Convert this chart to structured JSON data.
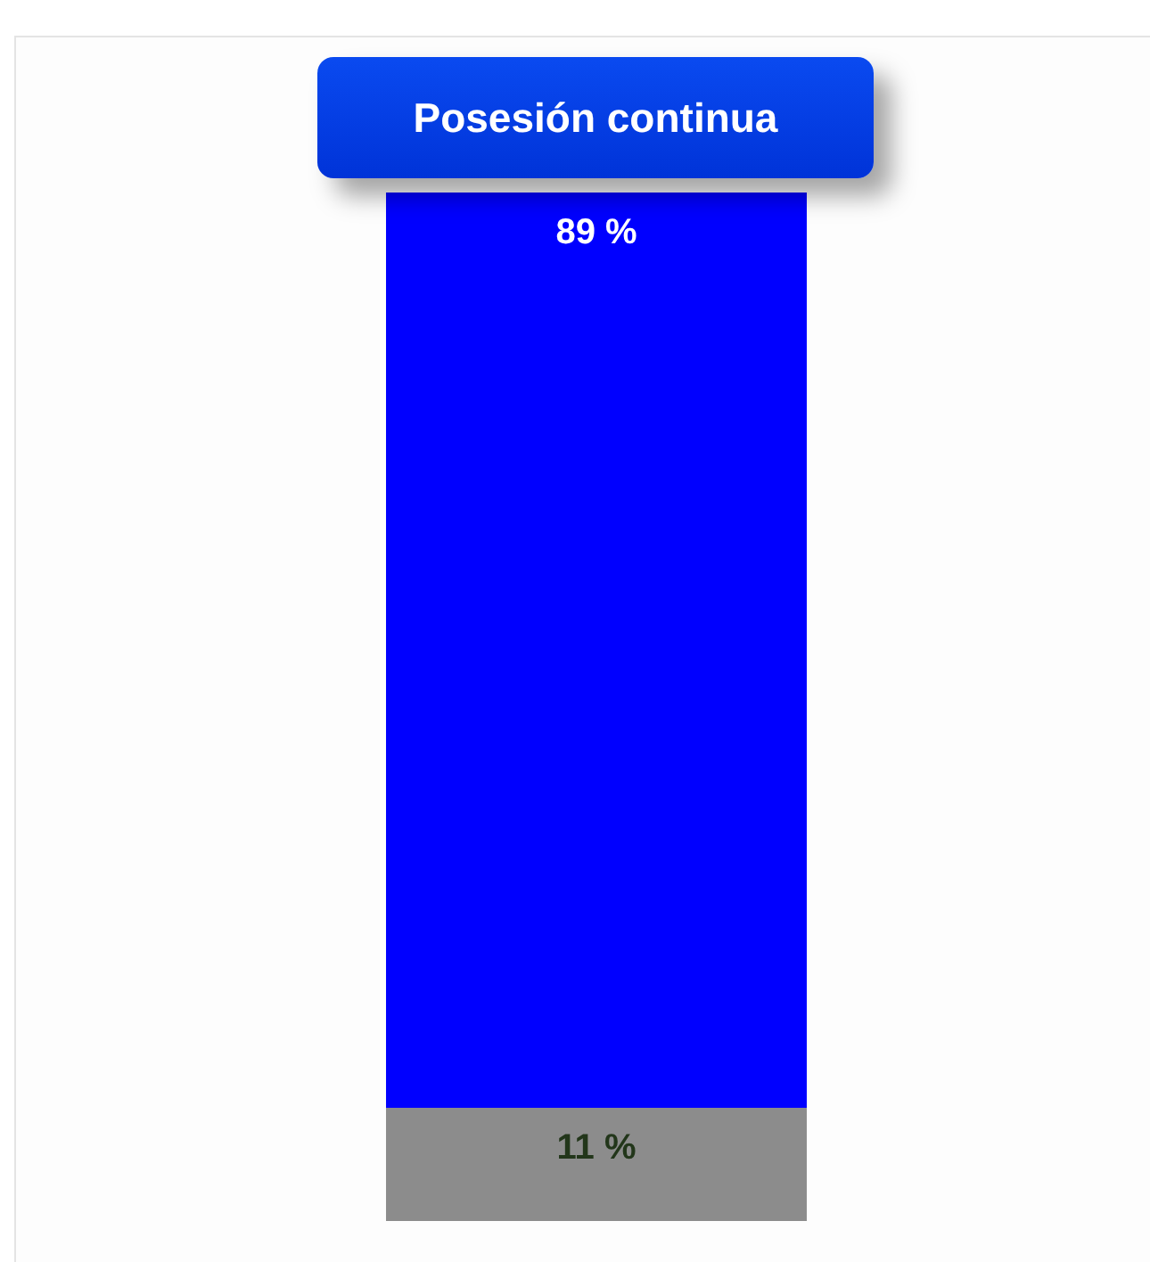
{
  "chart_data": {
    "type": "bar",
    "title": "Posesión continua",
    "categories": [
      null
    ],
    "stacked": true,
    "data_labels": true,
    "series": [
      {
        "color": "#8c8c8c",
        "values": [
          11
        ],
        "value_labels": [
          "11 %"
        ]
      },
      {
        "color": "#0000ff",
        "values": [
          89
        ],
        "value_labels": [
          "89 %"
        ]
      }
    ],
    "ylim": [
      0,
      100
    ],
    "tick_labels": false
  }
}
